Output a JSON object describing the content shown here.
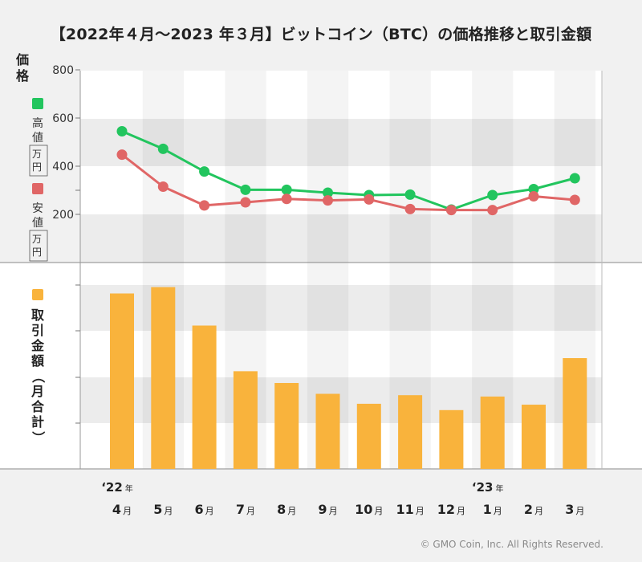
{
  "title": "【2022年４月～2023 年３月】ビットコイン（BTC）の価格推移と取引金額",
  "copyright": "© GMO Coin, Inc. All Rights Reserved.",
  "chart_data": [
    {
      "type": "line",
      "ylabel": "価格",
      "y_ticks": [
        "800",
        "600",
        "400",
        "200"
      ],
      "ylim": [
        0,
        800
      ],
      "grid": true,
      "legend_position": "left",
      "unit": "万円",
      "series": [
        {
          "name": "高値",
          "color": "#22c55e",
          "values": [
            545,
            472,
            378,
            302,
            302,
            290,
            280,
            282,
            220,
            280,
            305,
            350
          ]
        },
        {
          "name": "安値",
          "color": "#e06666",
          "values": [
            448,
            315,
            237,
            250,
            264,
            258,
            262,
            222,
            218,
            218,
            275,
            260
          ]
        }
      ]
    },
    {
      "type": "bar",
      "ylabel": "取引金額（月合計）",
      "color": "#f9b33c",
      "values": [
        388,
        402,
        317,
        216,
        190,
        166,
        144,
        163,
        130,
        160,
        142,
        245
      ],
      "ylim": [
        0,
        412
      ]
    }
  ],
  "x_axis": {
    "months": [
      "4",
      "5",
      "6",
      "7",
      "8",
      "9",
      "10",
      "11",
      "12",
      "1",
      "2",
      "3"
    ],
    "month_suffix": "月",
    "years": [
      {
        "label": "‘22",
        "suffix": "年",
        "month_index": 0
      },
      {
        "label": "‘23",
        "suffix": "年",
        "month_index": 9
      }
    ]
  }
}
